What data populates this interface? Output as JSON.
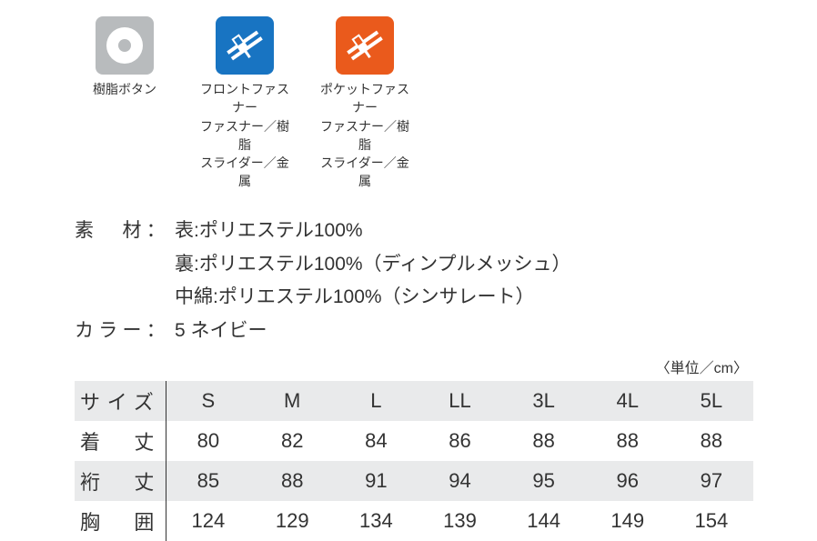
{
  "icons": [
    {
      "name": "button-icon",
      "bg": "#b8bbbd",
      "label": "樹脂ボタン",
      "shape": "circle",
      "circle_outer": "#ffffff",
      "circle_inner": "#b8bbbd"
    },
    {
      "name": "front-fastener-icon",
      "bg": "#1874c2",
      "label": "フロントファスナー\nファスナー／樹脂\nスライダー／金属",
      "shape": "zipper",
      "stripe_color": "#ffffff"
    },
    {
      "name": "pocket-fastener-icon",
      "bg": "#ea5a1c",
      "label": "ポケットファスナー\nファスナー／樹脂\nスライダー／金属",
      "shape": "zipper",
      "stripe_color": "#ffffff"
    }
  ],
  "material": {
    "label": "素　材：",
    "lines": [
      "表:ポリエステル100%",
      "裏:ポリエステル100%（ディンプルメッシュ）",
      "中綿:ポリエステル100%（シンサレート）"
    ]
  },
  "color": {
    "label": "カラー：",
    "value": "5 ネイビー"
  },
  "unit_note": "〈単位／cm〉",
  "size_table": {
    "header_label": "サイズ",
    "sizes": [
      "S",
      "M",
      "L",
      "LL",
      "3L",
      "4L",
      "5L"
    ],
    "rows": [
      {
        "label": "着　丈",
        "values": [
          80,
          82,
          84,
          86,
          88,
          88,
          88
        ],
        "grey": false
      },
      {
        "label": "裄　丈",
        "values": [
          85,
          88,
          91,
          94,
          95,
          96,
          97
        ],
        "grey": true
      },
      {
        "label": "胸　囲",
        "values": [
          124,
          129,
          134,
          139,
          144,
          149,
          154
        ],
        "grey": false
      }
    ]
  },
  "style": {
    "page_bg": "#ffffff",
    "text_color": "#333333",
    "grey_row_bg": "#e9eaeb",
    "border_color": "#333333",
    "body_font_size": 21,
    "table_font_size": 22,
    "icon_label_font_size": 14,
    "unit_font_size": 16
  }
}
